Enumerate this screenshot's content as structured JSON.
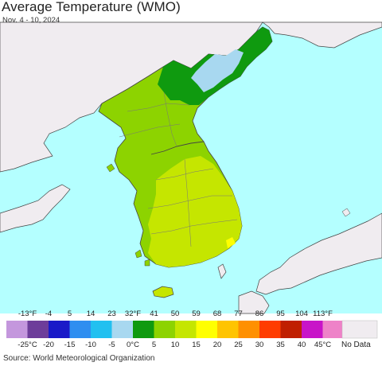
{
  "title": "Average Temperature (WMO)",
  "subtitle": "Nov. 4 - 10, 2024",
  "source": "Source: World Meteorological Organization",
  "legend": {
    "fahrenheit_labels": [
      "-13°F",
      "-4",
      "5",
      "14",
      "23",
      "32°F",
      "41",
      "50",
      "59",
      "68",
      "77",
      "86",
      "95",
      "104",
      "113°F"
    ],
    "celsius_labels": [
      "-25°C",
      "-20",
      "-15",
      "-10",
      "-5",
      "0°C",
      "5",
      "10",
      "15",
      "20",
      "25",
      "30",
      "35",
      "40",
      "45°C"
    ],
    "colors": [
      "#c497dd",
      "#6d3d9a",
      "#1a1ac8",
      "#2f8ef0",
      "#22c0f0",
      "#a8d8f0",
      "#0f9a0f",
      "#8dd300",
      "#c5e600",
      "#ffff00",
      "#ffc400",
      "#ff9000",
      "#ff3c00",
      "#c01f00",
      "#c814c8",
      "#ee82c8"
    ],
    "no_data_label": "No Data",
    "no_data_color": "#f0ecf0"
  },
  "map_colors": {
    "sea": "#b4ffff",
    "land_no_data": "#f0ecf0",
    "border": "#444444",
    "province": "#777777"
  }
}
